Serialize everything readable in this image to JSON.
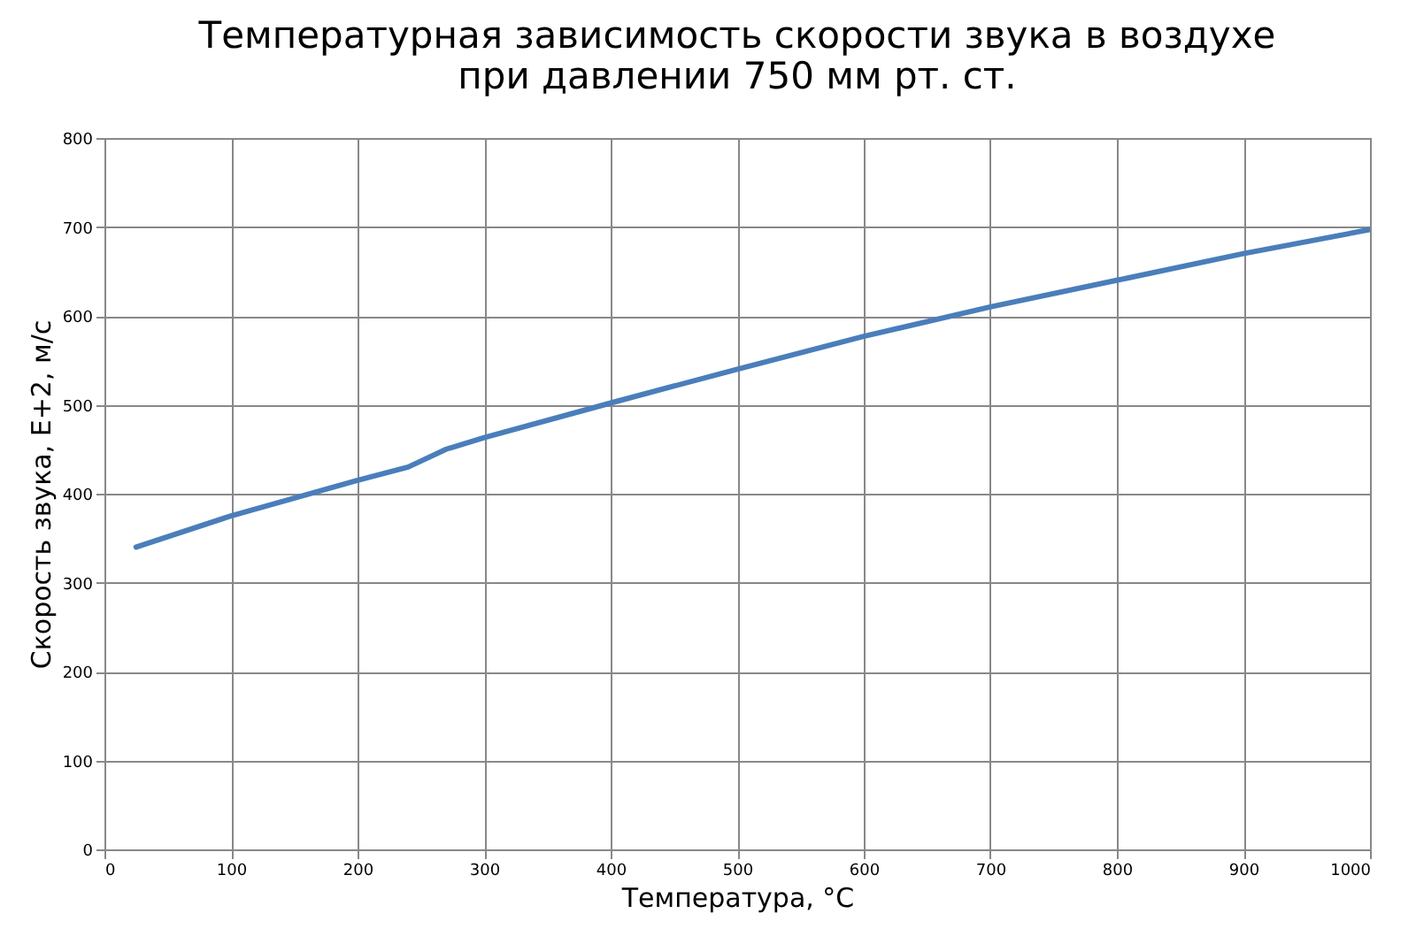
{
  "chart_data": {
    "type": "line",
    "title": [
      "Температурная  зависимость  скорости  звука  в  воздухе",
      "при  давлении  750 мм рт. ст."
    ],
    "xlabel": "Температура, °C",
    "ylabel": "Скорость звука, E+2, м/с",
    "x": [
      25,
      100,
      200,
      240,
      270,
      300,
      400,
      500,
      600,
      700,
      800,
      900,
      1000
    ],
    "series": [
      {
        "color": "#4a7ebb",
        "values": [
          340,
          375,
          415,
          430,
          450,
          463,
          502,
          540,
          577,
          610,
          640,
          670,
          697
        ]
      }
    ],
    "xlim": [
      0,
      1000
    ],
    "ylim": [
      0,
      800
    ],
    "xticks": [
      0,
      100,
      200,
      300,
      400,
      500,
      600,
      700,
      800,
      900,
      1000
    ],
    "yticks": [
      0,
      100,
      200,
      300,
      400,
      500,
      600,
      700,
      800
    ],
    "grid": true,
    "marker": "none",
    "line_style": "solid"
  }
}
